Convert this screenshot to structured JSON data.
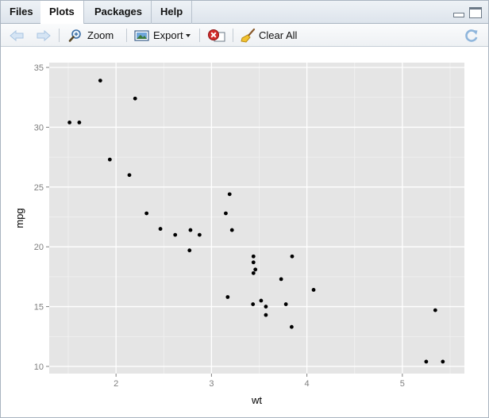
{
  "tabs": [
    {
      "label": "Files",
      "active": false
    },
    {
      "label": "Plots",
      "active": true
    },
    {
      "label": "Packages",
      "active": false
    },
    {
      "label": "Help",
      "active": false
    }
  ],
  "toolbar": {
    "zoom_label": "Zoom",
    "export_label": "Export",
    "clear_all_label": "Clear All",
    "icons": [
      "back-arrow-icon",
      "forward-arrow-icon",
      "zoom-icon",
      "export-icon",
      "remove-plot-icon",
      "clear-all-broom-icon",
      "refresh-icon"
    ]
  },
  "colors": {
    "panel_bg": "#e5e5e5",
    "grid": "#ffffff",
    "point": "#000000",
    "arrow_disabled": "#b9d2ea"
  },
  "chart_data": {
    "type": "scatter",
    "xlabel": "wt",
    "ylabel": "mpg",
    "xlim": [
      1.3,
      5.65
    ],
    "ylim": [
      9.4,
      35.4
    ],
    "x_ticks": [
      2,
      3,
      4,
      5
    ],
    "y_ticks": [
      10,
      15,
      20,
      25,
      30,
      35
    ],
    "x_tick_labels": [
      "2",
      "3",
      "4",
      "5"
    ],
    "y_tick_labels": [
      "10",
      "15",
      "20",
      "25",
      "30",
      "35"
    ],
    "grid": true,
    "points": [
      {
        "x": 2.62,
        "y": 21.0
      },
      {
        "x": 2.875,
        "y": 21.0
      },
      {
        "x": 2.32,
        "y": 22.8
      },
      {
        "x": 3.215,
        "y": 21.4
      },
      {
        "x": 3.44,
        "y": 18.7
      },
      {
        "x": 3.46,
        "y": 18.1
      },
      {
        "x": 3.57,
        "y": 14.3
      },
      {
        "x": 3.19,
        "y": 24.4
      },
      {
        "x": 3.15,
        "y": 22.8
      },
      {
        "x": 3.44,
        "y": 19.2
      },
      {
        "x": 3.44,
        "y": 17.8
      },
      {
        "x": 4.07,
        "y": 16.4
      },
      {
        "x": 3.73,
        "y": 17.3
      },
      {
        "x": 3.78,
        "y": 15.2
      },
      {
        "x": 5.25,
        "y": 10.4
      },
      {
        "x": 5.424,
        "y": 10.4
      },
      {
        "x": 5.345,
        "y": 14.7
      },
      {
        "x": 2.2,
        "y": 32.4
      },
      {
        "x": 1.615,
        "y": 30.4
      },
      {
        "x": 1.835,
        "y": 33.9
      },
      {
        "x": 2.465,
        "y": 21.5
      },
      {
        "x": 3.52,
        "y": 15.5
      },
      {
        "x": 3.435,
        "y": 15.2
      },
      {
        "x": 3.84,
        "y": 13.3
      },
      {
        "x": 3.845,
        "y": 19.2
      },
      {
        "x": 1.935,
        "y": 27.3
      },
      {
        "x": 2.14,
        "y": 26.0
      },
      {
        "x": 1.513,
        "y": 30.4
      },
      {
        "x": 3.17,
        "y": 15.8
      },
      {
        "x": 2.77,
        "y": 19.7
      },
      {
        "x": 3.57,
        "y": 15.0
      },
      {
        "x": 2.78,
        "y": 21.4
      }
    ]
  }
}
